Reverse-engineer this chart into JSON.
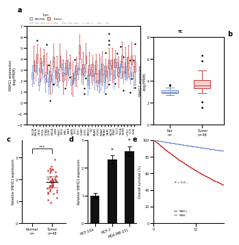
{
  "panel_a": {
    "categories": [
      "BLCA",
      "BRCA",
      "CESC",
      "CHOL",
      "COAD",
      "DLBC",
      "ESCA",
      "GBM",
      "HNSC",
      "KICH",
      "KIRC",
      "KIRP",
      "LAML",
      "LGG",
      "LIHC",
      "LUAD",
      "LUSC",
      "MESO",
      "OV",
      "PAAD",
      "PCPG",
      "PRAD",
      "READ",
      "SARC",
      "SKCM",
      "STAD",
      "TGCT",
      "THCA",
      "THYM",
      "UCEC",
      "UCS",
      "UVM"
    ],
    "normal_color": "#6688cc",
    "tumor_color": "#cc3333",
    "ylabel": "SNHG1 expression\n(log₂FPKM)",
    "ylim": [
      -2,
      7
    ]
  },
  "panel_b": {
    "title": "TC",
    "ylabel": "SNHG1 expression\n(log₂FPKM)",
    "ylim": [
      0,
      8
    ],
    "yticks": [
      0,
      2,
      4,
      6,
      8
    ],
    "normal_color": "#6688cc",
    "tumor_color": "#cc3333"
  },
  "panel_c": {
    "dot_color": "#cc3333",
    "line_color": "#333333",
    "ylabel": "Relative SNHG1 expression"
  },
  "panel_d": {
    "categories": [
      "MCF-10A",
      "MCF-7",
      "MDA-MB-231"
    ],
    "values": [
      1.0,
      2.3,
      2.6
    ],
    "errors": [
      0.08,
      0.15,
      0.18
    ],
    "bar_color": "#111111",
    "ylabel": "Relative SNHG1 expression",
    "ylim": [
      0,
      3
    ],
    "yticks": [
      0,
      1,
      2,
      3
    ],
    "sig_labels": [
      "",
      "*",
      "*"
    ]
  },
  "panel_e": {
    "ylabel": "Overall survival (%)",
    "ylim": [
      0,
      100
    ],
    "yticks": [
      0,
      20,
      40,
      60,
      80,
      100
    ],
    "p_value": "P = 0.0...",
    "line1_color": "#cc3333",
    "line2_color": "#6688cc",
    "line1_label": "SNH+",
    "line2_label": "SNH-"
  },
  "figure_bg": "#ffffff"
}
